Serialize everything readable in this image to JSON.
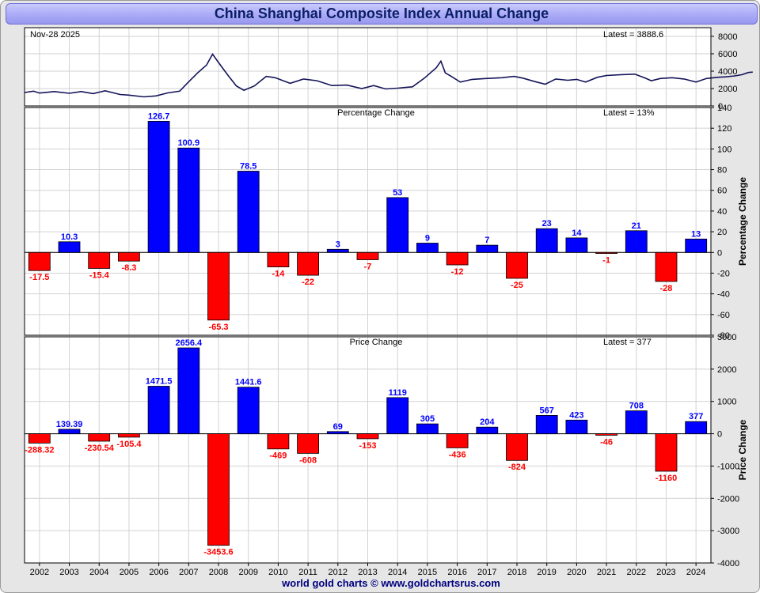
{
  "title": "China Shanghai Composite Index Annual Change",
  "footer": "world gold charts © www.goldchartsrus.com",
  "colors": {
    "positive": "#0000ff",
    "negative": "#ff0000",
    "price_line": "#14145a",
    "grid": "#d2d2d2",
    "title_bg": "#aaaaf7"
  },
  "chart_data": [
    {
      "type": "line",
      "name": "index-panel",
      "date_label": "Nov-28  2025",
      "latest_label": "Latest = 3888.6",
      "ylim": [
        0,
        9000
      ],
      "yticks": [
        0,
        2000,
        4000,
        6000,
        8000
      ],
      "x_range": [
        2001.5,
        2025.3
      ],
      "points": [
        [
          2001.5,
          1550
        ],
        [
          2001.8,
          1700
        ],
        [
          2002.0,
          1480
        ],
        [
          2002.5,
          1650
        ],
        [
          2003.0,
          1450
        ],
        [
          2003.4,
          1650
        ],
        [
          2003.8,
          1420
        ],
        [
          2004.2,
          1750
        ],
        [
          2004.7,
          1320
        ],
        [
          2005.0,
          1250
        ],
        [
          2005.5,
          1050
        ],
        [
          2005.9,
          1150
        ],
        [
          2006.3,
          1500
        ],
        [
          2006.7,
          1700
        ],
        [
          2006.95,
          2600
        ],
        [
          2007.3,
          3800
        ],
        [
          2007.6,
          4700
        ],
        [
          2007.8,
          5950
        ],
        [
          2008.0,
          5000
        ],
        [
          2008.3,
          3600
        ],
        [
          2008.6,
          2300
        ],
        [
          2008.85,
          1800
        ],
        [
          2009.2,
          2300
        ],
        [
          2009.6,
          3400
        ],
        [
          2009.9,
          3250
        ],
        [
          2010.4,
          2600
        ],
        [
          2010.85,
          3100
        ],
        [
          2011.3,
          2900
        ],
        [
          2011.8,
          2350
        ],
        [
          2012.3,
          2400
        ],
        [
          2012.8,
          2000
        ],
        [
          2013.2,
          2350
        ],
        [
          2013.6,
          1950
        ],
        [
          2014.0,
          2050
        ],
        [
          2014.5,
          2200
        ],
        [
          2014.9,
          3200
        ],
        [
          2015.3,
          4400
        ],
        [
          2015.45,
          5150
        ],
        [
          2015.6,
          3800
        ],
        [
          2015.8,
          3400
        ],
        [
          2016.1,
          2750
        ],
        [
          2016.5,
          3050
        ],
        [
          2016.95,
          3150
        ],
        [
          2017.5,
          3250
        ],
        [
          2017.9,
          3400
        ],
        [
          2018.2,
          3200
        ],
        [
          2018.6,
          2800
        ],
        [
          2018.95,
          2500
        ],
        [
          2019.3,
          3100
        ],
        [
          2019.7,
          2950
        ],
        [
          2020.0,
          3050
        ],
        [
          2020.3,
          2750
        ],
        [
          2020.7,
          3300
        ],
        [
          2021.0,
          3500
        ],
        [
          2021.5,
          3600
        ],
        [
          2021.95,
          3650
        ],
        [
          2022.3,
          3200
        ],
        [
          2022.5,
          2900
        ],
        [
          2022.8,
          3150
        ],
        [
          2023.2,
          3250
        ],
        [
          2023.6,
          3100
        ],
        [
          2024.0,
          2750
        ],
        [
          2024.35,
          3150
        ],
        [
          2024.75,
          3300
        ],
        [
          2025.0,
          3350
        ],
        [
          2025.3,
          3450
        ],
        [
          2025.55,
          3600
        ],
        [
          2025.75,
          3850
        ],
        [
          2025.9,
          3890
        ]
      ]
    },
    {
      "type": "bar",
      "name": "percentage-change",
      "title": "Percentage Change",
      "latest_label": "Latest = 13%",
      "ylabel": "Percentage Change",
      "ylim": [
        -80,
        140
      ],
      "yticks": [
        -80,
        -60,
        -40,
        -20,
        0,
        20,
        40,
        60,
        80,
        100,
        120,
        140
      ],
      "categories": [
        "2002",
        "2003",
        "2004",
        "2005",
        "2006",
        "2007",
        "2008",
        "2009",
        "2010",
        "2011",
        "2012",
        "2013",
        "2014",
        "2015",
        "2016",
        "2017",
        "2018",
        "2019",
        "2020",
        "2021",
        "2022",
        "2023",
        "2024"
      ],
      "values": [
        -17.5,
        10.3,
        -15.4,
        -8.3,
        126.7,
        100.9,
        -65.3,
        78.5,
        -14,
        -22,
        3,
        -7,
        53,
        9,
        -12,
        7,
        -25,
        23,
        14,
        -1,
        21,
        -28,
        13
      ],
      "labels": [
        "-17.5",
        "10.3",
        "-15.4",
        "-8.3",
        "126.7",
        "100.9",
        "-65.3",
        "78.5",
        "-14",
        "-22",
        "3",
        "-7",
        "53",
        "9",
        "-12",
        "7",
        "-25",
        "23",
        "14",
        "-1",
        "21",
        "-28",
        "13"
      ]
    },
    {
      "type": "bar",
      "name": "price-change",
      "title": "Price Change",
      "latest_label": "Latest = 377",
      "ylabel": "Price Change",
      "ylim": [
        -4000,
        3000
      ],
      "yticks": [
        -4000,
        -3000,
        -2000,
        -1000,
        0,
        1000,
        2000,
        3000
      ],
      "categories": [
        "2002",
        "2003",
        "2004",
        "2005",
        "2006",
        "2007",
        "2008",
        "2009",
        "2010",
        "2011",
        "2012",
        "2013",
        "2014",
        "2015",
        "2016",
        "2017",
        "2018",
        "2019",
        "2020",
        "2021",
        "2022",
        "2023",
        "2024"
      ],
      "values": [
        -288.32,
        139.39,
        -230.54,
        -105.4,
        1471.5,
        2656.4,
        -3453.6,
        1441.6,
        -469,
        -608,
        69,
        -153,
        1119,
        305,
        -436,
        204,
        -824,
        567,
        423,
        -46,
        708,
        -1160,
        377
      ],
      "labels": [
        "-288.32",
        "139.39",
        "-230.54",
        "-105.4",
        "1471.5",
        "2656.4",
        "-3453.6",
        "1441.6",
        "-469",
        "-608",
        "69",
        "-153",
        "1119",
        "305",
        "-436",
        "204",
        "-824",
        "567",
        "423",
        "-46",
        "708",
        "-1160",
        "377"
      ]
    }
  ]
}
